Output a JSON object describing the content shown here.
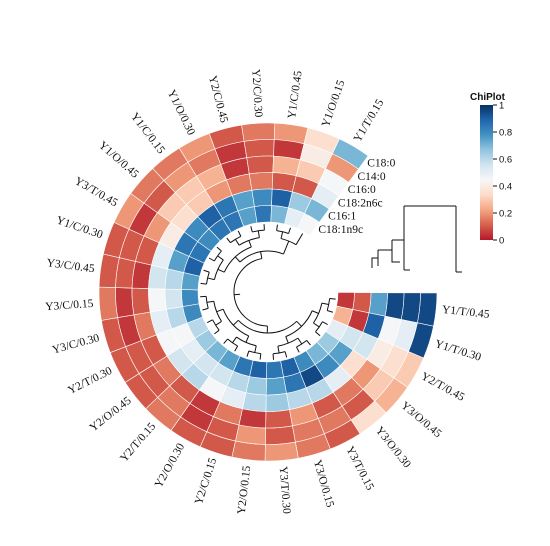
{
  "chart_data": {
    "type": "heatmap",
    "layout": "circular",
    "samples": [
      "Y1/T/0.45",
      "Y1/T/0.30",
      "Y2/T/0.45",
      "Y3/O/0.45",
      "Y3/O/0.30",
      "Y3/T/0.15",
      "Y3/O/0.15",
      "Y3/T/0.30",
      "Y2/O/0.15",
      "Y2/C/0.15",
      "Y2/O/0.30",
      "Y2/T/0.15",
      "Y2/O/0.45",
      "Y2/T/0.30",
      "Y3/C/0.30",
      "Y3/C/0.15",
      "Y3/C/0.45",
      "Y1/C/0.30",
      "Y3/T/0.45",
      "Y1/O/0.45",
      "Y1/C/0.15",
      "Y1/O/0.30",
      "Y2/C/0.45",
      "Y2/C/0.30",
      "Y1/C/0.45",
      "Y1/O/0.15",
      "Y1/T/0.15"
    ],
    "rings": [
      "C18:0",
      "C14:0",
      "C16:0",
      "C18:2n6c",
      "C16:1",
      "C18:1n9c"
    ],
    "values": [
      [
        0.95,
        0.95,
        0.3,
        0.25,
        0.35,
        0.1,
        0.15,
        0.2,
        0.15,
        0.1,
        0.1,
        0.15,
        0.1,
        0.1,
        0.1,
        0.15,
        0.1,
        0.1,
        0.2,
        0.15,
        0.15,
        0.2,
        0.1,
        0.15,
        0.2,
        0.35,
        0.7
      ],
      [
        0.95,
        0.5,
        0.35,
        0.3,
        0.1,
        0.15,
        0.15,
        0.1,
        0.2,
        0.1,
        0.05,
        0.15,
        0.1,
        0.1,
        0.05,
        0.05,
        0.1,
        0.1,
        0.05,
        0.1,
        0.2,
        0.15,
        0.05,
        0.1,
        0.05,
        0.4,
        0.2
      ],
      [
        0.95,
        0.45,
        0.4,
        0.2,
        0.15,
        0.1,
        0.2,
        0.1,
        0.05,
        0.15,
        0.05,
        0.1,
        0.15,
        0.1,
        0.15,
        0.1,
        0.05,
        0.1,
        0.2,
        0.3,
        0.3,
        0.25,
        0.05,
        0.1,
        0.25,
        0.3,
        0.45
      ],
      [
        0.75,
        0.9,
        0.55,
        0.35,
        0.5,
        0.6,
        0.6,
        0.65,
        0.6,
        0.5,
        0.45,
        0.6,
        0.55,
        0.45,
        0.5,
        0.45,
        0.55,
        0.5,
        0.4,
        0.35,
        0.3,
        0.2,
        0.15,
        0.15,
        0.1,
        0.1,
        0.5
      ],
      [
        0.1,
        0.05,
        0.55,
        0.75,
        0.8,
        0.95,
        0.85,
        0.75,
        0.65,
        0.6,
        0.55,
        0.55,
        0.5,
        0.45,
        0.6,
        0.55,
        0.6,
        0.75,
        0.85,
        0.8,
        0.9,
        0.85,
        0.75,
        0.8,
        0.9,
        0.65,
        0.7
      ],
      [
        0.05,
        0.25,
        0.5,
        0.65,
        0.7,
        0.8,
        0.9,
        0.85,
        0.9,
        0.85,
        0.75,
        0.7,
        0.65,
        0.6,
        0.8,
        0.8,
        0.75,
        0.9,
        0.85,
        0.8,
        0.85,
        0.85,
        0.75,
        0.85,
        0.7,
        0.5,
        0.45
      ]
    ],
    "legend": {
      "title": "ChiPlot",
      "ticks": [
        "0",
        "0.2",
        "0.4",
        "0.6",
        "0.8",
        "1"
      ],
      "placement": "top-right",
      "colors": [
        "#b2182b",
        "#d6604d",
        "#f4a582",
        "#fddbc7",
        "#f7f7f7",
        "#d1e5f0",
        "#92c5de",
        "#4393c3",
        "#2166ac",
        "#053061"
      ]
    }
  }
}
